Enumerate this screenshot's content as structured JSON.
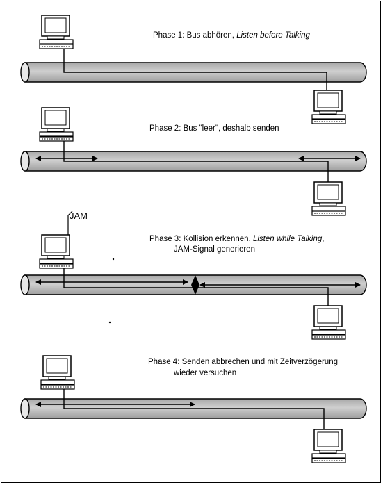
{
  "phases": [
    {
      "prefix": "Phase 1: Bus abhören, ",
      "italic": "Listen before Talking",
      "line2": ""
    },
    {
      "prefix": "Phase 2: Bus \"leer\", deshalb senden",
      "italic": "",
      "line2": ""
    },
    {
      "prefix": "Phase 3: Kollision erkennen, ",
      "italic": "Listen while Talking",
      "suffix": ",",
      "line2": "JAM-Signal generieren"
    },
    {
      "prefix": "Phase 4: Senden abbrechen und mit Zeitverzögerung",
      "italic": "",
      "line2": "wieder versuchen"
    }
  ],
  "jam_label": "JAM",
  "colors": {
    "bus_fill": "#bdbdbd",
    "line": "#000000"
  },
  "icons": [
    "computer-icon",
    "arrow-icon",
    "collision-icon"
  ]
}
